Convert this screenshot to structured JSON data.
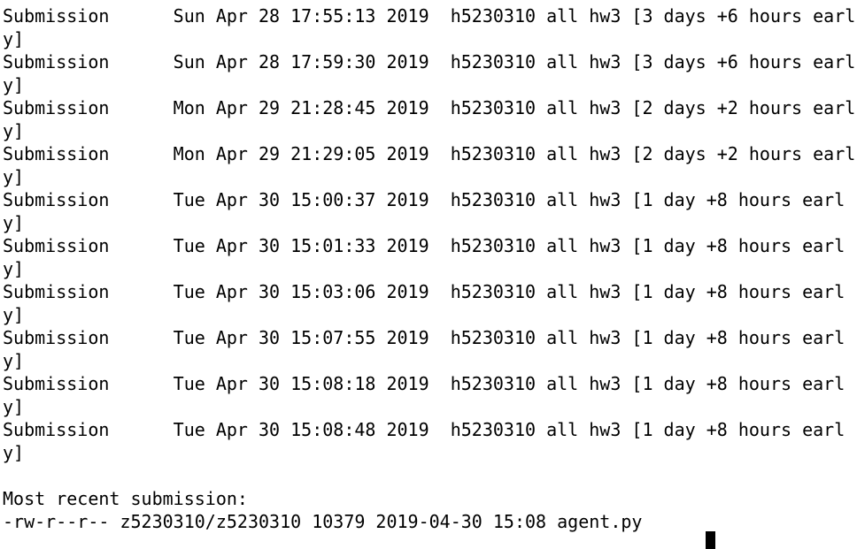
{
  "terminal": {
    "submissions": [
      "Submission      Sun Apr 28 17:55:13 2019  h5230310 all hw3 [3 days +6 hours early]",
      "Submission      Sun Apr 28 17:59:30 2019  h5230310 all hw3 [3 days +6 hours early]",
      "Submission      Mon Apr 29 21:28:45 2019  h5230310 all hw3 [2 days +2 hours early]",
      "Submission      Mon Apr 29 21:29:05 2019  h5230310 all hw3 [2 days +2 hours early]",
      "Submission      Tue Apr 30 15:00:37 2019  h5230310 all hw3 [1 day +8 hours early]",
      "Submission      Tue Apr 30 15:01:33 2019  h5230310 all hw3 [1 day +8 hours early]",
      "Submission      Tue Apr 30 15:03:06 2019  h5230310 all hw3 [1 day +8 hours early]",
      "Submission      Tue Apr 30 15:07:55 2019  h5230310 all hw3 [1 day +8 hours early]",
      "Submission      Tue Apr 30 15:08:18 2019  h5230310 all hw3 [1 day +8 hours early]",
      "Submission      Tue Apr 30 15:08:48 2019  h5230310 all hw3 [1 day +8 hours early]"
    ],
    "recent_heading": "Most recent submission:",
    "recent_file": "-rw-r--r-- z5230310/z5230310 10379 2019-04-30 15:08 agent.py"
  }
}
